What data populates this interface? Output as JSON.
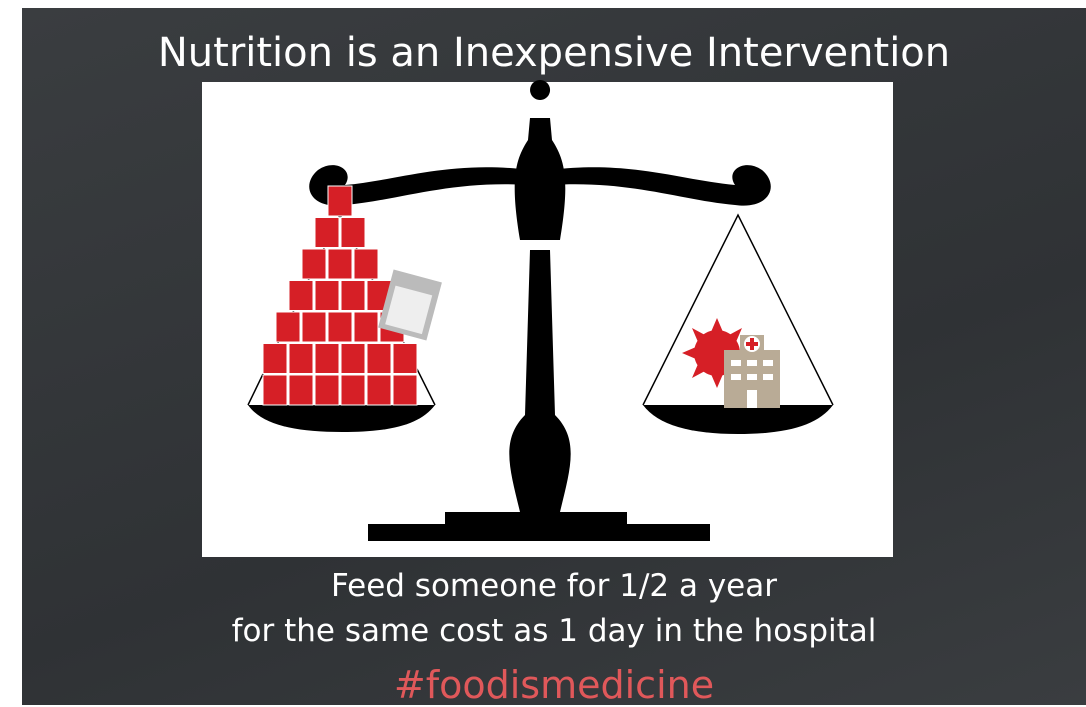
{
  "title": "Nutrition is an Inexpensive Intervention",
  "caption": [
    "Feed someone for 1/2 a year",
    "for the same cost as 1 day in the hospital"
  ],
  "hashtag": "#foodismedicine"
}
